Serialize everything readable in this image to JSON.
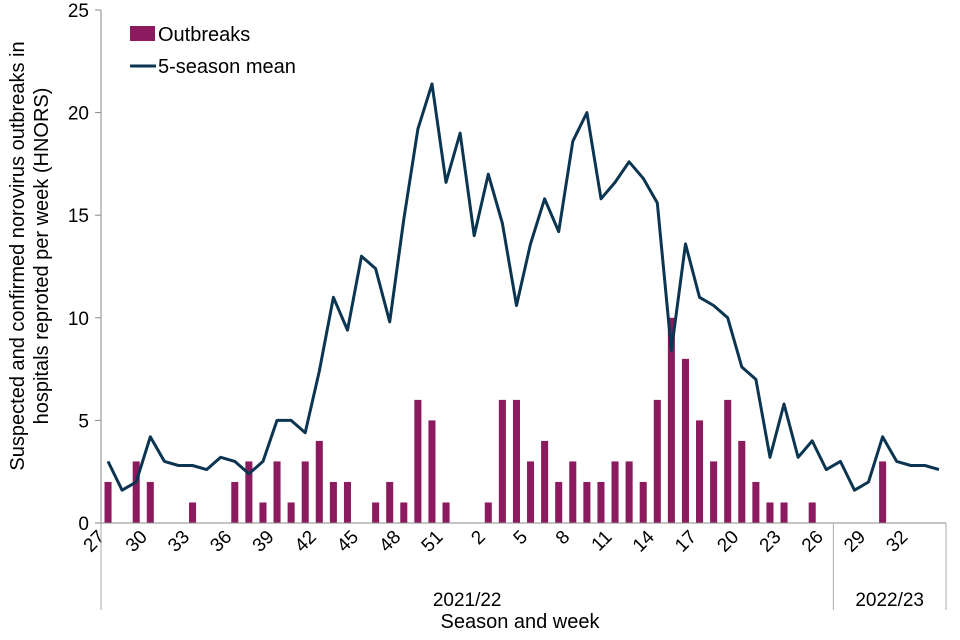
{
  "chart_data": {
    "type": "bar+line",
    "ylabel": "Suspected and confirmed norovirus outbreaks in hospitals reproted per week (HNORS)",
    "xlabel": "Season and week",
    "ylim": [
      0,
      25
    ],
    "y_ticks": [
      "0",
      "5",
      "10",
      "15",
      "20",
      "25"
    ],
    "weeks": [
      27,
      28,
      29,
      30,
      31,
      32,
      33,
      34,
      35,
      36,
      37,
      38,
      39,
      40,
      41,
      42,
      43,
      44,
      45,
      46,
      47,
      48,
      49,
      50,
      51,
      52,
      1,
      2,
      3,
      4,
      5,
      6,
      7,
      8,
      9,
      10,
      11,
      12,
      13,
      14,
      15,
      16,
      17,
      18,
      19,
      20,
      21,
      22,
      23,
      24,
      25,
      26,
      27,
      28,
      29,
      30,
      31,
      32,
      33,
      34
    ],
    "x_tick_labels": [
      "27",
      "30",
      "33",
      "36",
      "39",
      "42",
      "45",
      "48",
      "51",
      "2",
      "5",
      "8",
      "11",
      "14",
      "17",
      "20",
      "23",
      "26",
      "29",
      "32"
    ],
    "seasons": [
      {
        "label": "2021/22",
        "weeks": 52
      },
      {
        "label": "2022/23",
        "weeks": 8
      }
    ],
    "series": [
      {
        "name": "Outbreaks",
        "type": "bar",
        "color": "#8b1a5e",
        "values": [
          2,
          0,
          3,
          2,
          0,
          0,
          1,
          0,
          0,
          2,
          3,
          1,
          3,
          1,
          3,
          4,
          2,
          2,
          0,
          1,
          2,
          1,
          6,
          5,
          1,
          0,
          0,
          1,
          6,
          6,
          3,
          4,
          2,
          3,
          2,
          2,
          3,
          3,
          2,
          6,
          10,
          8,
          5,
          3,
          6,
          4,
          2,
          1,
          1,
          0,
          1,
          0,
          0,
          0,
          0,
          3,
          0,
          0,
          0,
          0
        ]
      },
      {
        "name": "5-season mean",
        "type": "line",
        "color": "#0b3550",
        "values": [
          3.0,
          1.6,
          2.0,
          4.2,
          3.0,
          2.8,
          2.8,
          2.6,
          3.2,
          3.0,
          2.4,
          3.0,
          5.0,
          5.0,
          4.4,
          7.4,
          11.0,
          9.4,
          13.0,
          12.4,
          9.8,
          14.8,
          19.2,
          21.4,
          16.6,
          19.0,
          14.0,
          17.0,
          14.6,
          10.6,
          13.6,
          15.8,
          14.2,
          18.6,
          20.0,
          15.8,
          16.6,
          17.6,
          16.8,
          15.6,
          8.4,
          13.6,
          11.0,
          10.6,
          10.0,
          7.6,
          7.0,
          3.2,
          5.8,
          3.2,
          4.0,
          2.6,
          3.0,
          1.6,
          2.0,
          4.2,
          3.0,
          2.8,
          2.8,
          2.6
        ]
      }
    ],
    "legend_position": "top-left",
    "grid": false
  }
}
